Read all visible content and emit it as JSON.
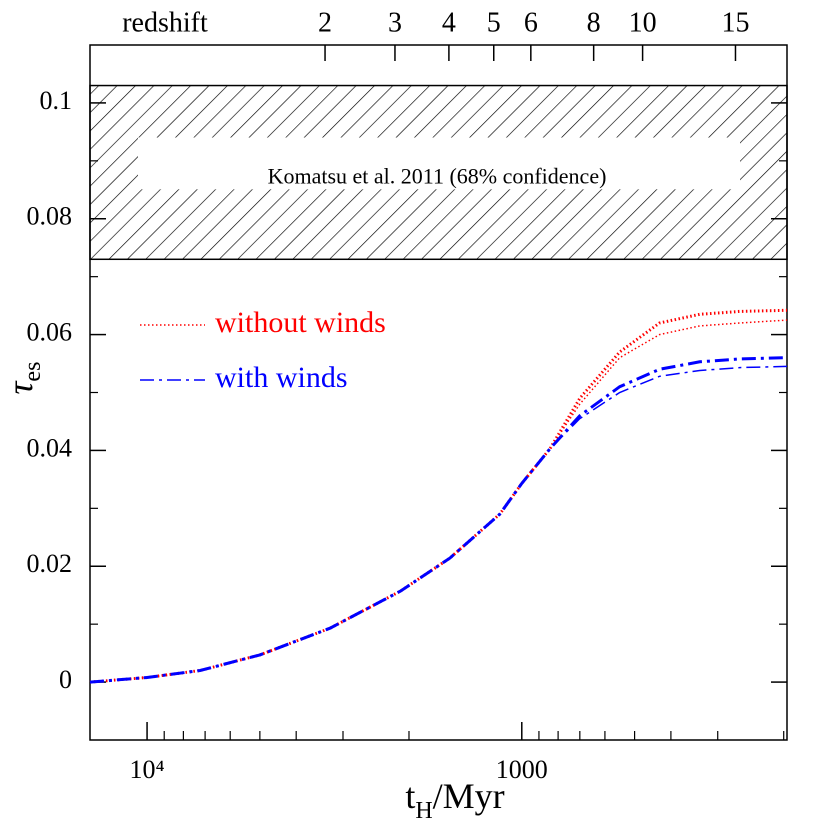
{
  "chart_data": {
    "type": "line",
    "xlabel": {
      "text": "t",
      "sub": "H",
      "after": "/Myr"
    },
    "ylabel": {
      "text": "τ",
      "sub": "es"
    },
    "xscale": "log",
    "xlim": [
      14200,
      196
    ],
    "ylim": [
      -0.01,
      0.11
    ],
    "xticks": [
      {
        "value": 10000,
        "label": "10⁴"
      },
      1000
    ],
    "xminorticks": [
      9000,
      8000,
      7000,
      6000,
      5000,
      4000,
      3000,
      2000,
      900,
      800,
      700,
      600,
      500,
      400,
      300,
      200
    ],
    "yticks": [
      0,
      0.02,
      0.04,
      0.06,
      0.08,
      0.1
    ],
    "yminorticks": [
      0.01,
      0.03,
      0.05,
      0.07,
      0.09
    ],
    "top_axis": {
      "label": "redshift",
      "ticks": [
        {
          "value": 3350,
          "label": "2"
        },
        {
          "value": 2180,
          "label": "3"
        },
        {
          "value": 1565,
          "label": "4"
        },
        {
          "value": 1188,
          "label": "5"
        },
        {
          "value": 946,
          "label": "6"
        },
        {
          "value": 643,
          "label": "8"
        },
        {
          "value": 476,
          "label": "10"
        },
        {
          "value": 269,
          "label": "15"
        }
      ]
    },
    "band": {
      "ymin": 0.073,
      "ymax": 0.103,
      "label": "Komatsu et al. 2011 (68% confidence)"
    },
    "x": [
      14200,
      10000,
      7220,
      5000,
      3250,
      2110,
      1555,
      1145,
      1000,
      841,
      700,
      548,
      429,
      335,
      262,
      196
    ],
    "series": [
      {
        "name": "without winds",
        "color": "#ff0000",
        "style": "dotted",
        "width": 3,
        "values": [
          0,
          0.0008,
          0.002,
          0.0047,
          0.0093,
          0.0157,
          0.0214,
          0.029,
          0.0343,
          0.0403,
          0.049,
          0.057,
          0.062,
          0.0635,
          0.064,
          0.0642
        ]
      },
      {
        "color": "#ff0000",
        "style": "dotted",
        "width": 1.5,
        "values": [
          0,
          0.0008,
          0.002,
          0.0047,
          0.0093,
          0.0157,
          0.0214,
          0.029,
          0.0343,
          0.0403,
          0.048,
          0.056,
          0.06,
          0.0615,
          0.062,
          0.0625
        ]
      },
      {
        "name": "with winds",
        "color": "#0000ff",
        "style": "dashdot",
        "width": 3,
        "values": [
          0,
          0.0008,
          0.002,
          0.0047,
          0.0093,
          0.0157,
          0.0214,
          0.029,
          0.0343,
          0.0403,
          0.046,
          0.051,
          0.054,
          0.0553,
          0.0558,
          0.056
        ]
      },
      {
        "color": "#0000ff",
        "style": "dashdot",
        "width": 1.5,
        "values": [
          0,
          0.0008,
          0.002,
          0.0047,
          0.0093,
          0.0157,
          0.0214,
          0.029,
          0.0343,
          0.0403,
          0.0455,
          0.05,
          0.0528,
          0.0538,
          0.0543,
          0.0545
        ]
      }
    ]
  }
}
